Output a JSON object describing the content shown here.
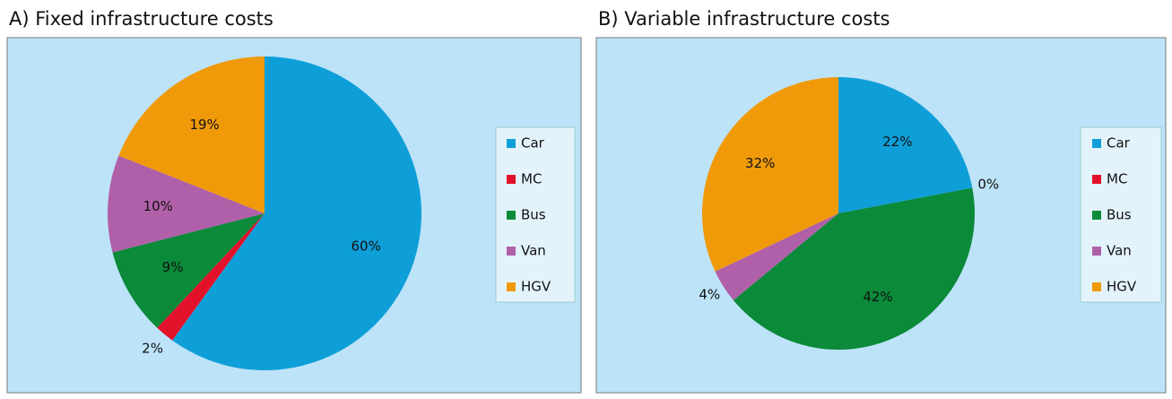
{
  "chart_data": [
    {
      "type": "pie",
      "title": "A) Fixed infrastructure costs",
      "categories": [
        "Car",
        "MC",
        "Bus",
        "Van",
        "HGV"
      ],
      "values": [
        60,
        2,
        9,
        10,
        19
      ],
      "value_labels": [
        "60%",
        "2%",
        "9%",
        "10%",
        "19%"
      ],
      "colors": [
        "#0f9fd8",
        "#e2122b",
        "#0b8a3a",
        "#b060a8",
        "#f09a0a"
      ]
    },
    {
      "type": "pie",
      "title": "B) Variable infrastructure costs",
      "categories": [
        "Car",
        "MC",
        "Bus",
        "Van",
        "HGV"
      ],
      "values": [
        22,
        0,
        42,
        4,
        32
      ],
      "value_labels": [
        "22%",
        "0%",
        "42%",
        "4%",
        "32%"
      ],
      "colors": [
        "#0f9fd8",
        "#e2122b",
        "#0b8a3a",
        "#b060a8",
        "#f09a0a"
      ]
    }
  ]
}
